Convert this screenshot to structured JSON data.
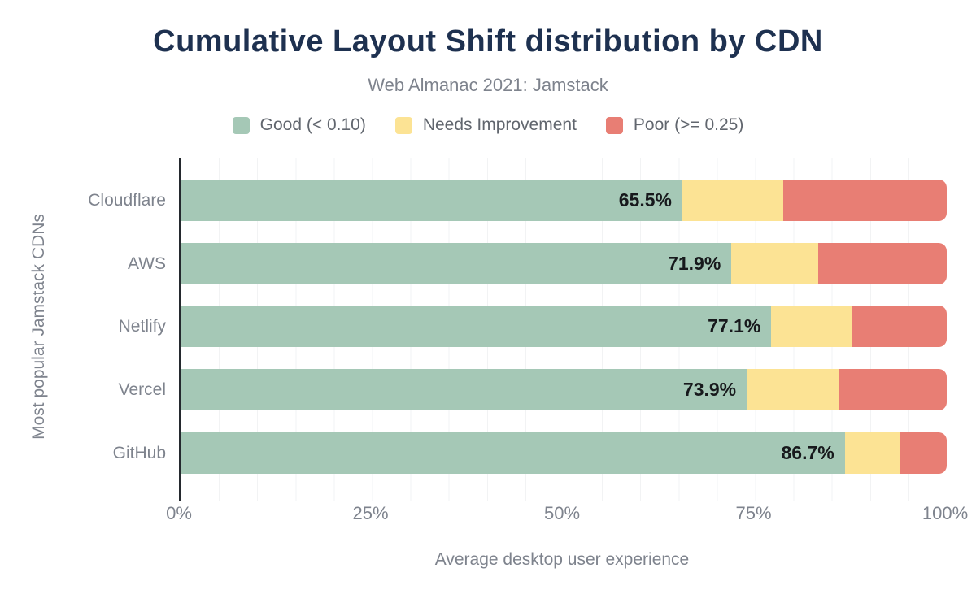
{
  "header": {
    "title": "Cumulative Layout Shift distribution by CDN",
    "subtitle": "Web Almanac 2021: Jamstack"
  },
  "legend": [
    {
      "label": "Good (< 0.10)",
      "color": "#a5c8b6"
    },
    {
      "label": "Needs Improvement",
      "color": "#fce394"
    },
    {
      "label": "Poor (>= 0.25)",
      "color": "#e87e74"
    }
  ],
  "chart_data": {
    "type": "bar",
    "stacked": true,
    "orientation": "horizontal",
    "title": "Cumulative Layout Shift distribution by CDN",
    "subtitle": "Web Almanac 2021: Jamstack",
    "categories": [
      "Cloudflare",
      "AWS",
      "Netlify",
      "Vercel",
      "GitHub"
    ],
    "series": [
      {
        "name": "Good (< 0.10)",
        "color": "#a5c8b6",
        "values": [
          65.5,
          71.9,
          77.1,
          73.9,
          86.7
        ]
      },
      {
        "name": "Needs Improvement",
        "color": "#fce394",
        "values": [
          13.2,
          11.3,
          10.5,
          12.0,
          7.3
        ]
      },
      {
        "name": "Poor (>= 0.25)",
        "color": "#e87e74",
        "values": [
          21.3,
          16.8,
          12.4,
          14.1,
          6.0
        ]
      }
    ],
    "bar_value_labels": [
      "65.5%",
      "71.9%",
      "77.1%",
      "73.9%",
      "86.7%"
    ],
    "xlabel": "Average desktop user experience",
    "ylabel": "Most popular Jamstack CDNs",
    "x_ticks": [
      {
        "label": "0%",
        "value": 0
      },
      {
        "label": "25%",
        "value": 25
      },
      {
        "label": "50%",
        "value": 50
      },
      {
        "label": "75%",
        "value": 75
      },
      {
        "label": "100%",
        "value": 100
      }
    ],
    "xlim": [
      0,
      100
    ],
    "grid": "vertical gridlines every 5%",
    "legend_position": "top"
  },
  "colors": {
    "good": "#a5c8b6",
    "needs_improvement": "#fce394",
    "poor": "#e87e74",
    "title": "#1e3150",
    "muted_text": "#7e838d",
    "axis_line": "#24292e",
    "gridline": "#f2f3f4",
    "background": "#ffffff"
  }
}
